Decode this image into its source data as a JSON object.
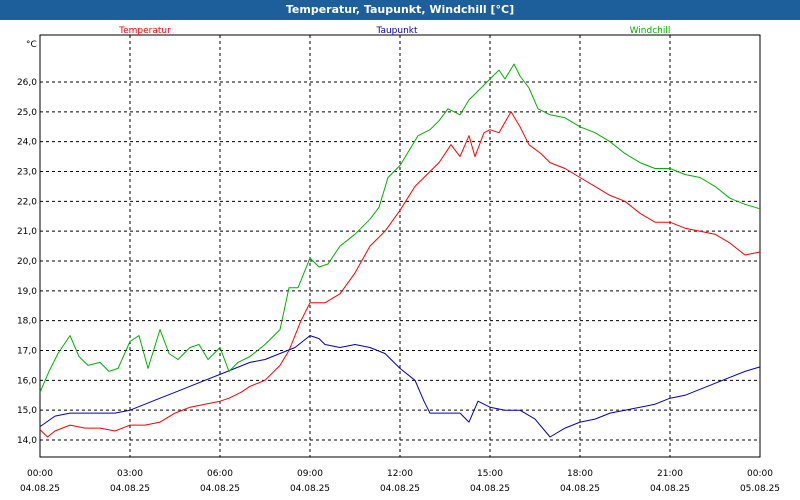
{
  "window": {
    "title": "Temperatur, Taupunkt, Windchill [°C]"
  },
  "chart_data": {
    "type": "line",
    "title": "Temperatur, Taupunkt, Windchill [°C]",
    "ylabel": "°C",
    "ylim": [
      13.6,
      27.0
    ],
    "yticks": [
      "14,0",
      "15,0",
      "16,0",
      "17,0",
      "18,0",
      "19,0",
      "20,0",
      "21,0",
      "22,0",
      "23,0",
      "24,0",
      "25,0",
      "26,0"
    ],
    "xlim": [
      0,
      24
    ],
    "xticks": [
      {
        "time": "00:00",
        "date": "04.08.25"
      },
      {
        "time": "03:00",
        "date": "04.08.25"
      },
      {
        "time": "06:00",
        "date": "04.08.25"
      },
      {
        "time": "09:00",
        "date": "04.08.25"
      },
      {
        "time": "12:00",
        "date": "04.08.25"
      },
      {
        "time": "15:00",
        "date": "04.08.25"
      },
      {
        "time": "18:00",
        "date": "04.08.25"
      },
      {
        "time": "21:00",
        "date": "04.08.25"
      },
      {
        "time": "00:00",
        "date": "05.08.25"
      }
    ],
    "grid": true,
    "legend_placement": "top",
    "x_unit": "hours since 04.08.25 00:00",
    "series": [
      {
        "name": "Temperatur",
        "color": "#ff0000",
        "points": [
          [
            0,
            14.35
          ],
          [
            0.25,
            14.1
          ],
          [
            0.5,
            14.3
          ],
          [
            1,
            14.5
          ],
          [
            1.5,
            14.4
          ],
          [
            2,
            14.4
          ],
          [
            2.5,
            14.3
          ],
          [
            3,
            14.5
          ],
          [
            3.5,
            14.5
          ],
          [
            4,
            14.6
          ],
          [
            4.5,
            14.9
          ],
          [
            5,
            15.1
          ],
          [
            5.5,
            15.2
          ],
          [
            6,
            15.3
          ],
          [
            6.3,
            15.4
          ],
          [
            6.7,
            15.6
          ],
          [
            7,
            15.8
          ],
          [
            7.5,
            16.0
          ],
          [
            8,
            16.5
          ],
          [
            8.3,
            17.0
          ],
          [
            8.7,
            18.0
          ],
          [
            9.0,
            18.6
          ],
          [
            9.5,
            18.6
          ],
          [
            10,
            18.9
          ],
          [
            10.5,
            19.6
          ],
          [
            11,
            20.5
          ],
          [
            11.5,
            21.0
          ],
          [
            12,
            21.7
          ],
          [
            12.5,
            22.5
          ],
          [
            13,
            23.0
          ],
          [
            13.3,
            23.3
          ],
          [
            13.7,
            23.9
          ],
          [
            14,
            23.5
          ],
          [
            14.3,
            24.2
          ],
          [
            14.5,
            23.5
          ],
          [
            14.8,
            24.3
          ],
          [
            15,
            24.4
          ],
          [
            15.3,
            24.3
          ],
          [
            15.7,
            25.0
          ],
          [
            16,
            24.5
          ],
          [
            16.3,
            23.9
          ],
          [
            16.7,
            23.6
          ],
          [
            17,
            23.3
          ],
          [
            17.5,
            23.1
          ],
          [
            18,
            22.8
          ],
          [
            18.5,
            22.5
          ],
          [
            19,
            22.2
          ],
          [
            19.5,
            22.0
          ],
          [
            20,
            21.6
          ],
          [
            20.5,
            21.3
          ],
          [
            21,
            21.3
          ],
          [
            21.5,
            21.1
          ],
          [
            22,
            21.0
          ],
          [
            22.5,
            20.9
          ],
          [
            23,
            20.6
          ],
          [
            23.5,
            20.2
          ],
          [
            24,
            20.3
          ]
        ]
      },
      {
        "name": "Taupunkt",
        "color": "#0000c0",
        "points": [
          [
            0,
            14.45
          ],
          [
            0.5,
            14.8
          ],
          [
            1,
            14.9
          ],
          [
            1.5,
            14.9
          ],
          [
            2,
            14.9
          ],
          [
            2.5,
            14.9
          ],
          [
            3,
            15.0
          ],
          [
            3.5,
            15.2
          ],
          [
            4,
            15.4
          ],
          [
            4.5,
            15.6
          ],
          [
            5,
            15.8
          ],
          [
            5.5,
            16.0
          ],
          [
            6,
            16.2
          ],
          [
            6.5,
            16.4
          ],
          [
            7,
            16.6
          ],
          [
            7.5,
            16.7
          ],
          [
            8,
            16.9
          ],
          [
            8.5,
            17.1
          ],
          [
            9,
            17.5
          ],
          [
            9.3,
            17.4
          ],
          [
            9.5,
            17.2
          ],
          [
            10,
            17.1
          ],
          [
            10.5,
            17.2
          ],
          [
            11,
            17.1
          ],
          [
            11.5,
            16.9
          ],
          [
            12,
            16.4
          ],
          [
            12.5,
            16.0
          ],
          [
            12.8,
            15.3
          ],
          [
            13,
            14.9
          ],
          [
            13.5,
            14.9
          ],
          [
            14,
            14.9
          ],
          [
            14.3,
            14.6
          ],
          [
            14.6,
            15.3
          ],
          [
            15,
            15.1
          ],
          [
            15.5,
            15.0
          ],
          [
            16,
            15.0
          ],
          [
            16.5,
            14.7
          ],
          [
            17,
            14.1
          ],
          [
            17.5,
            14.4
          ],
          [
            18,
            14.6
          ],
          [
            18.5,
            14.7
          ],
          [
            19,
            14.9
          ],
          [
            19.5,
            15.0
          ],
          [
            20,
            15.1
          ],
          [
            20.5,
            15.2
          ],
          [
            21,
            15.4
          ],
          [
            21.5,
            15.5
          ],
          [
            22,
            15.7
          ],
          [
            22.5,
            15.9
          ],
          [
            23,
            16.1
          ],
          [
            23.5,
            16.3
          ],
          [
            24,
            16.45
          ]
        ]
      },
      {
        "name": "Windchill",
        "color": "#00b000",
        "points": [
          [
            0,
            15.6
          ],
          [
            0.3,
            16.3
          ],
          [
            0.6,
            16.9
          ],
          [
            1,
            17.5
          ],
          [
            1.3,
            16.8
          ],
          [
            1.6,
            16.5
          ],
          [
            2,
            16.6
          ],
          [
            2.3,
            16.3
          ],
          [
            2.6,
            16.4
          ],
          [
            3,
            17.3
          ],
          [
            3.3,
            17.5
          ],
          [
            3.6,
            16.4
          ],
          [
            4,
            17.7
          ],
          [
            4.3,
            16.9
          ],
          [
            4.6,
            16.7
          ],
          [
            5,
            17.1
          ],
          [
            5.3,
            17.2
          ],
          [
            5.6,
            16.7
          ],
          [
            6,
            17.1
          ],
          [
            6.3,
            16.3
          ],
          [
            6.6,
            16.6
          ],
          [
            7,
            16.8
          ],
          [
            7.5,
            17.2
          ],
          [
            8,
            17.7
          ],
          [
            8.3,
            19.1
          ],
          [
            8.6,
            19.1
          ],
          [
            9,
            20.1
          ],
          [
            9.3,
            19.8
          ],
          [
            9.6,
            19.9
          ],
          [
            10,
            20.5
          ],
          [
            10.5,
            20.9
          ],
          [
            11,
            21.4
          ],
          [
            11.3,
            21.8
          ],
          [
            11.6,
            22.8
          ],
          [
            12,
            23.2
          ],
          [
            12.3,
            23.7
          ],
          [
            12.6,
            24.2
          ],
          [
            13,
            24.4
          ],
          [
            13.3,
            24.7
          ],
          [
            13.6,
            25.1
          ],
          [
            14,
            24.9
          ],
          [
            14.3,
            25.4
          ],
          [
            14.6,
            25.7
          ],
          [
            15,
            26.1
          ],
          [
            15.3,
            26.4
          ],
          [
            15.5,
            26.1
          ],
          [
            15.8,
            26.6
          ],
          [
            16,
            26.2
          ],
          [
            16.3,
            25.8
          ],
          [
            16.6,
            25.1
          ],
          [
            17,
            24.9
          ],
          [
            17.5,
            24.8
          ],
          [
            18,
            24.5
          ],
          [
            18.5,
            24.3
          ],
          [
            19,
            24.0
          ],
          [
            19.5,
            23.6
          ],
          [
            20,
            23.3
          ],
          [
            20.5,
            23.1
          ],
          [
            21,
            23.1
          ],
          [
            21.5,
            22.9
          ],
          [
            22,
            22.8
          ],
          [
            22.5,
            22.5
          ],
          [
            23,
            22.1
          ],
          [
            23.5,
            21.9
          ],
          [
            24,
            21.75
          ]
        ]
      }
    ]
  }
}
